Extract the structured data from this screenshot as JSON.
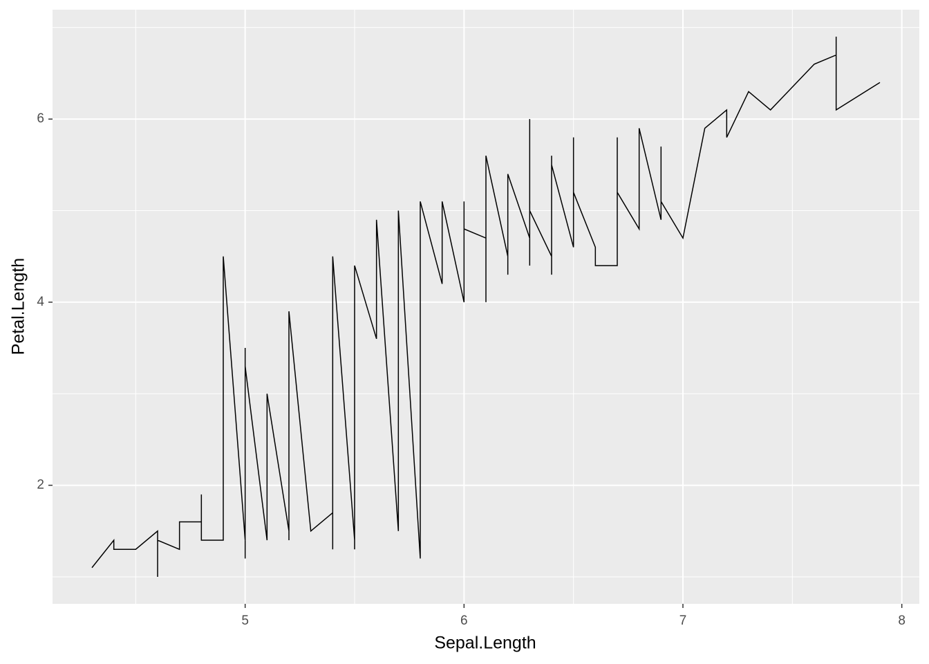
{
  "chart_data": {
    "type": "line",
    "xlabel": "Sepal.Length",
    "ylabel": "Petal.Length",
    "x": [
      4.3,
      4.4,
      4.4,
      4.4,
      4.5,
      4.6,
      4.6,
      4.6,
      4.6,
      4.7,
      4.7,
      4.8,
      4.8,
      4.8,
      4.8,
      4.8,
      4.9,
      4.9,
      4.9,
      4.9,
      4.9,
      4.9,
      5.0,
      5.0,
      5.0,
      5.0,
      5.0,
      5.0,
      5.0,
      5.0,
      5.0,
      5.0,
      5.1,
      5.1,
      5.1,
      5.1,
      5.1,
      5.1,
      5.1,
      5.1,
      5.1,
      5.2,
      5.2,
      5.2,
      5.2,
      5.3,
      5.4,
      5.4,
      5.4,
      5.4,
      5.4,
      5.4,
      5.5,
      5.5,
      5.5,
      5.5,
      5.5,
      5.5,
      5.5,
      5.6,
      5.6,
      5.6,
      5.6,
      5.6,
      5.6,
      5.7,
      5.7,
      5.7,
      5.7,
      5.7,
      5.7,
      5.7,
      5.7,
      5.8,
      5.8,
      5.8,
      5.8,
      5.8,
      5.8,
      5.8,
      5.9,
      5.9,
      5.9,
      6.0,
      6.0,
      6.0,
      6.0,
      6.0,
      6.0,
      6.1,
      6.1,
      6.1,
      6.1,
      6.1,
      6.1,
      6.2,
      6.2,
      6.2,
      6.2,
      6.3,
      6.3,
      6.3,
      6.3,
      6.3,
      6.3,
      6.3,
      6.3,
      6.3,
      6.4,
      6.4,
      6.4,
      6.4,
      6.4,
      6.4,
      6.4,
      6.5,
      6.5,
      6.5,
      6.5,
      6.5,
      6.6,
      6.6,
      6.7,
      6.7,
      6.7,
      6.7,
      6.7,
      6.7,
      6.7,
      6.7,
      6.8,
      6.8,
      6.8,
      6.9,
      6.9,
      6.9,
      6.9,
      7.0,
      7.1,
      7.2,
      7.2,
      7.2,
      7.3,
      7.4,
      7.6,
      7.7,
      7.7,
      7.7,
      7.7,
      7.9
    ],
    "y": [
      1.1,
      1.4,
      1.3,
      1.3,
      1.3,
      1.5,
      1.4,
      1.0,
      1.4,
      1.3,
      1.6,
      1.6,
      1.4,
      1.9,
      1.6,
      1.4,
      1.4,
      1.5,
      1.5,
      1.4,
      3.3,
      4.5,
      1.4,
      1.5,
      1.6,
      1.6,
      1.2,
      1.3,
      1.6,
      1.4,
      3.5,
      3.3,
      1.4,
      1.4,
      1.5,
      1.5,
      1.7,
      1.5,
      1.9,
      1.6,
      3.0,
      1.5,
      1.4,
      1.5,
      3.9,
      1.5,
      1.7,
      1.5,
      1.3,
      1.7,
      1.5,
      4.5,
      1.4,
      1.3,
      4.0,
      3.8,
      3.7,
      4.0,
      4.4,
      3.6,
      4.5,
      3.9,
      4.1,
      4.2,
      4.9,
      1.5,
      1.7,
      4.5,
      3.5,
      4.2,
      4.2,
      4.1,
      5.0,
      1.2,
      4.1,
      3.9,
      4.0,
      5.1,
      5.1,
      5.1,
      4.2,
      4.8,
      5.1,
      4.0,
      4.5,
      5.1,
      4.5,
      5.0,
      4.8,
      4.7,
      4.0,
      4.7,
      4.6,
      4.9,
      5.6,
      4.5,
      4.3,
      4.8,
      5.4,
      4.7,
      4.9,
      4.4,
      6.0,
      5.6,
      4.9,
      5.1,
      5.6,
      5.0,
      4.5,
      4.3,
      5.3,
      5.3,
      5.6,
      5.6,
      5.5,
      4.6,
      5.8,
      5.1,
      5.5,
      5.2,
      4.6,
      4.4,
      4.4,
      5.0,
      4.7,
      5.8,
      5.7,
      5.6,
      5.7,
      5.2,
      4.8,
      5.5,
      5.9,
      4.9,
      5.7,
      5.4,
      5.1,
      4.7,
      5.9,
      6.1,
      6.0,
      5.8,
      6.3,
      6.1,
      6.6,
      6.7,
      6.9,
      6.7,
      6.1,
      6.4
    ],
    "color": "#000000",
    "xlim": [
      4.12,
      8.08
    ],
    "xticks": [
      5,
      6,
      7,
      8
    ],
    "x_minor_breaks": [
      4.5,
      5.5,
      6.5,
      7.5
    ],
    "ylim": [
      0.705,
      7.195
    ],
    "yticks": [
      2,
      4,
      6
    ],
    "y_minor_breaks": [
      1,
      3,
      5,
      7
    ],
    "grid": true
  }
}
